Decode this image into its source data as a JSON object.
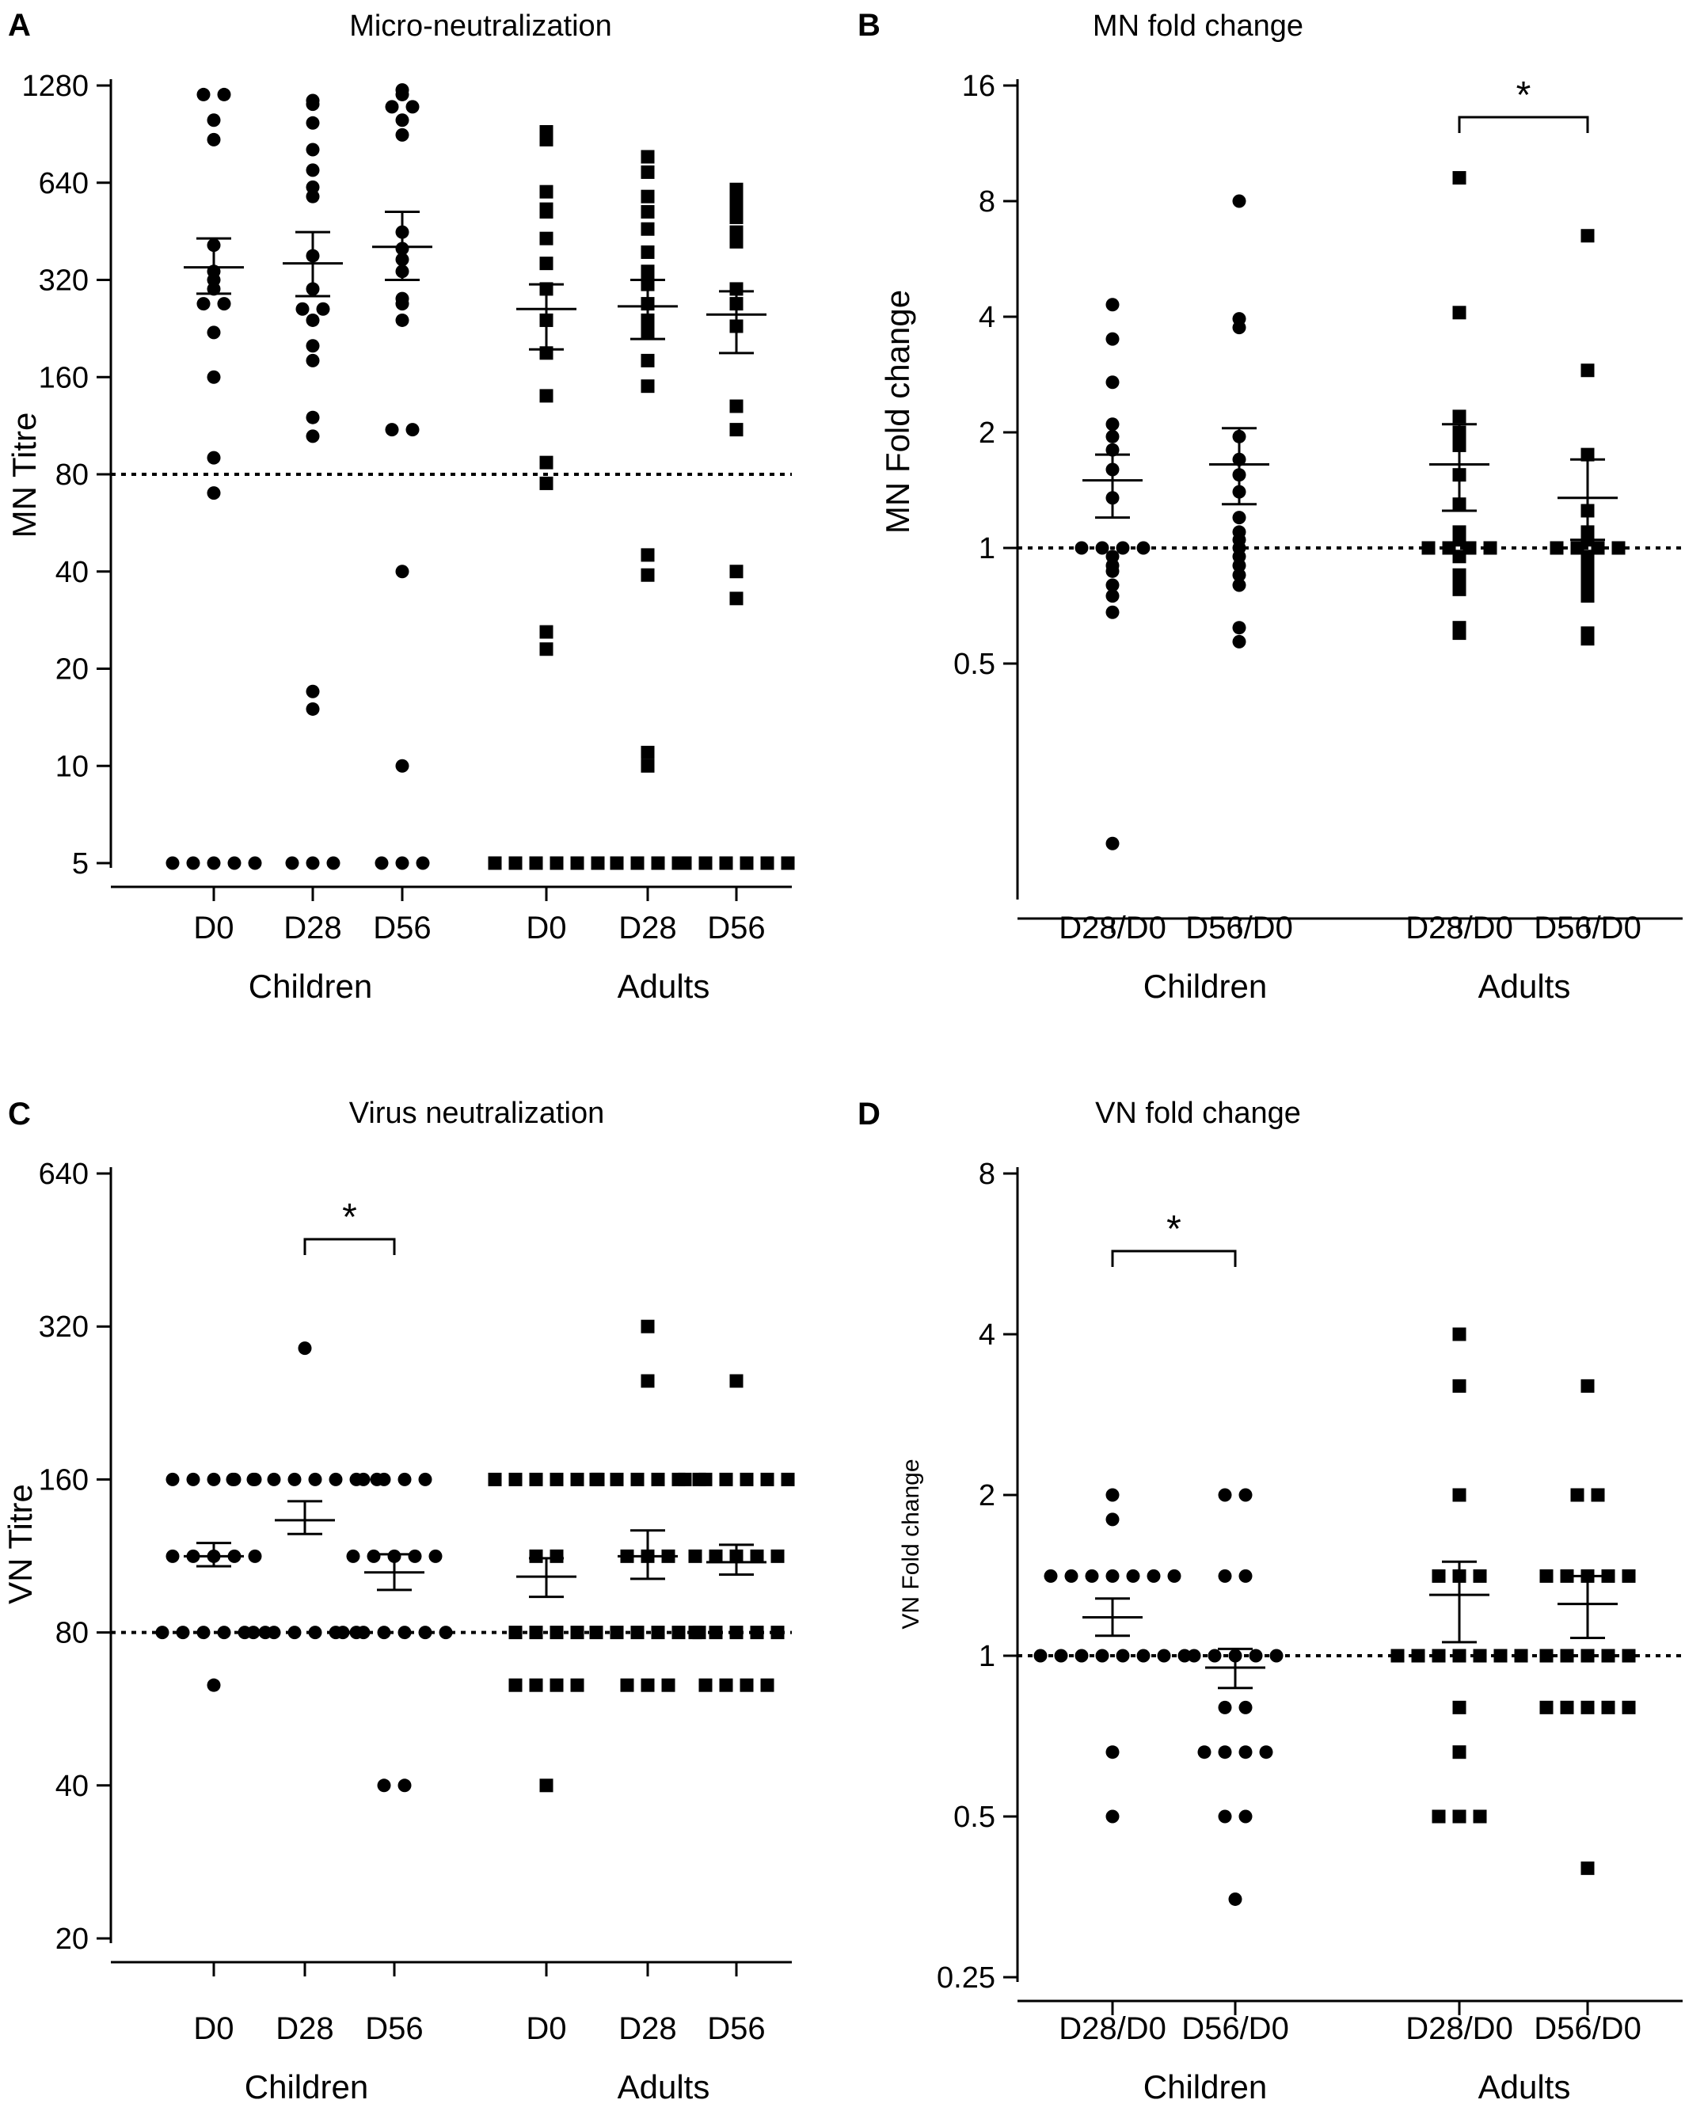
{
  "chart_data": [
    {
      "id": "A",
      "type": "scatter",
      "panel_label": "A",
      "title": "Micro-neutralization",
      "ylabel": "MN Titre",
      "yscale": "log2",
      "ylim": [
        5,
        1280
      ],
      "yticks": [
        "1280",
        "640",
        "320",
        "160",
        "80",
        "40",
        "20",
        "10",
        "5"
      ],
      "reference_line": 80,
      "groups": [
        "Children",
        "Adults"
      ],
      "categories": [
        "D0",
        "D28",
        "D56",
        "D0",
        "D28",
        "D56"
      ],
      "series": [
        {
          "category": "D0",
          "group": "Children",
          "marker": "circle",
          "mean": 350,
          "sem": [
            290,
            430
          ],
          "values": [
            1200,
            1200,
            1000,
            870,
            410,
            340,
            320,
            300,
            270,
            270,
            220,
            160,
            90,
            70,
            5,
            5,
            5,
            5,
            5
          ]
        },
        {
          "category": "D28",
          "group": "Children",
          "marker": "circle",
          "mean": 360,
          "sem": [
            285,
            450
          ],
          "values": [
            1150,
            1120,
            980,
            810,
            700,
            620,
            580,
            380,
            300,
            260,
            260,
            240,
            200,
            180,
            120,
            105,
            17,
            15,
            5,
            5,
            5
          ]
        },
        {
          "category": "D56",
          "group": "Children",
          "marker": "circle",
          "mean": 405,
          "sem": [
            320,
            520
          ],
          "values": [
            1240,
            1200,
            1100,
            1100,
            1000,
            900,
            450,
            400,
            370,
            340,
            280,
            270,
            240,
            110,
            110,
            40,
            10,
            5,
            5,
            5
          ]
        },
        {
          "category": "D0",
          "group": "Adults",
          "marker": "square",
          "mean": 260,
          "sem": [
            195,
            310
          ],
          "values": [
            870,
            920,
            600,
            530,
            520,
            430,
            360,
            300,
            240,
            190,
            140,
            87,
            75,
            26,
            23,
            5,
            5,
            5,
            5,
            5,
            5
          ]
        },
        {
          "category": "D28",
          "group": "Adults",
          "marker": "square",
          "mean": 265,
          "sem": [
            210,
            320
          ],
          "values": [
            770,
            690,
            580,
            520,
            460,
            390,
            340,
            310,
            270,
            240,
            220,
            180,
            150,
            45,
            39,
            11,
            10,
            5,
            5,
            5,
            5
          ]
        },
        {
          "category": "D56",
          "group": "Adults",
          "marker": "square",
          "mean": 250,
          "sem": [
            190,
            295
          ],
          "values": [
            610,
            560,
            520,
            510,
            500,
            450,
            420,
            300,
            270,
            230,
            130,
            110,
            40,
            33,
            5,
            5,
            5,
            5,
            5,
            5
          ]
        }
      ]
    },
    {
      "id": "B",
      "type": "scatter",
      "panel_label": "B",
      "title": "MN fold change",
      "ylabel": "MN Fold change",
      "yscale": "log2",
      "ylim": [
        0.125,
        16
      ],
      "yticks": [
        "16",
        "8",
        "4",
        "2",
        "1",
        "0.5"
      ],
      "reference_line": 1,
      "groups": [
        "Children",
        "Adults"
      ],
      "categories": [
        "D28/D0",
        "D56/D0",
        "D28/D0",
        "D56/D0"
      ],
      "significance": [
        {
          "between": [
            "D28/D0",
            "D56/D0"
          ],
          "group": "Adults",
          "label": "*"
        }
      ],
      "series": [
        {
          "category": "D28/D0",
          "group": "Children",
          "marker": "circle",
          "mean": 1.5,
          "sem": [
            1.2,
            1.75
          ],
          "values": [
            4.3,
            3.5,
            2.7,
            2.1,
            1.95,
            1.8,
            1.6,
            1.35,
            1.0,
            1.0,
            1.0,
            1.0,
            0.95,
            0.9,
            0.87,
            0.8,
            0.75,
            0.68,
            0.17
          ]
        },
        {
          "category": "D56/D0",
          "group": "Children",
          "marker": "circle",
          "mean": 1.65,
          "sem": [
            1.3,
            2.05
          ],
          "values": [
            8.0,
            3.95,
            3.75,
            1.95,
            1.7,
            1.55,
            1.4,
            1.2,
            1.1,
            1.05,
            1.0,
            0.95,
            0.9,
            0.85,
            0.8,
            0.62,
            0.57
          ]
        },
        {
          "category": "D28/D0",
          "group": "Adults",
          "marker": "square",
          "mean": 1.65,
          "sem": [
            1.25,
            2.1
          ],
          "values": [
            9.2,
            4.1,
            2.2,
            2.0,
            1.85,
            1.55,
            1.3,
            1.1,
            1.05,
            1.0,
            1.0,
            1.0,
            1.0,
            0.95,
            0.85,
            0.8,
            0.78,
            0.62,
            0.6
          ]
        },
        {
          "category": "D56/D0",
          "group": "Adults",
          "marker": "square",
          "mean": 1.35,
          "sem": [
            1.05,
            1.7
          ],
          "values": [
            6.5,
            2.9,
            1.75,
            1.25,
            1.1,
            1.05,
            1.0,
            1.0,
            1.0,
            1.0,
            0.95,
            0.9,
            0.85,
            0.8,
            0.75,
            0.6,
            0.58
          ]
        }
      ]
    },
    {
      "id": "C",
      "type": "scatter",
      "panel_label": "C",
      "title": "Virus neutralization",
      "ylabel": "VN Titre",
      "yscale": "log2",
      "ylim": [
        20,
        640
      ],
      "yticks": [
        "640",
        "320",
        "160",
        "80",
        "40",
        "20"
      ],
      "reference_line": 80,
      "groups": [
        "Children",
        "Adults"
      ],
      "categories": [
        "D0",
        "D28",
        "D56",
        "D0",
        "D28",
        "D56"
      ],
      "significance": [
        {
          "between": [
            "D28",
            "D56"
          ],
          "group": "Children",
          "label": "*"
        }
      ],
      "series": [
        {
          "category": "D0",
          "group": "Children",
          "marker": "circle",
          "mean": 113,
          "sem": [
            108,
            120
          ],
          "values": [
            160,
            160,
            160,
            160,
            160,
            113,
            113,
            113,
            113,
            113,
            80,
            80,
            80,
            80,
            80,
            80,
            63
          ]
        },
        {
          "category": "D28",
          "group": "Children",
          "marker": "circle",
          "mean": 133,
          "sem": [
            125,
            145
          ],
          "values": [
            290,
            160,
            160,
            160,
            160,
            160,
            160,
            160,
            160,
            80,
            80,
            80,
            80,
            80,
            80
          ]
        },
        {
          "category": "D56",
          "group": "Children",
          "marker": "circle",
          "mean": 105,
          "sem": [
            97,
            114
          ],
          "values": [
            160,
            160,
            160,
            160,
            113,
            113,
            113,
            113,
            113,
            80,
            80,
            80,
            80,
            80,
            80,
            40,
            40
          ]
        },
        {
          "category": "D0",
          "group": "Adults",
          "marker": "square",
          "mean": 103,
          "sem": [
            94,
            112
          ],
          "values": [
            160,
            160,
            160,
            160,
            160,
            160,
            113,
            113,
            80,
            80,
            80,
            80,
            63,
            63,
            63,
            63,
            40
          ]
        },
        {
          "category": "D28",
          "group": "Adults",
          "marker": "square",
          "mean": 113,
          "sem": [
            102,
            127
          ],
          "values": [
            320,
            250,
            160,
            160,
            160,
            160,
            160,
            160,
            113,
            113,
            113,
            80,
            80,
            80,
            80,
            80,
            80,
            63,
            63,
            63
          ]
        },
        {
          "category": "D56",
          "group": "Adults",
          "marker": "square",
          "mean": 110,
          "sem": [
            104,
            119
          ],
          "values": [
            250,
            160,
            160,
            160,
            160,
            160,
            160,
            113,
            113,
            113,
            113,
            113,
            80,
            80,
            80,
            80,
            80,
            63,
            63,
            63,
            63
          ]
        }
      ]
    },
    {
      "id": "D",
      "type": "scatter",
      "panel_label": "D",
      "title": "VN fold change",
      "ylabel": "VN Fold change",
      "yscale": "log2",
      "ylim": [
        0.25,
        8
      ],
      "yticks": [
        "8",
        "4",
        "2",
        "1",
        "0.5",
        "0.25"
      ],
      "reference_line": 1,
      "groups": [
        "Children",
        "Adults"
      ],
      "categories": [
        "D28/D0",
        "D56/D0",
        "D28/D0",
        "D56/D0"
      ],
      "significance": [
        {
          "between": [
            "D28/D0",
            "D56/D0"
          ],
          "group": "Children",
          "label": "*"
        }
      ],
      "series": [
        {
          "category": "D28/D0",
          "group": "Children",
          "marker": "circle",
          "mean": 1.18,
          "sem": [
            1.09,
            1.28
          ],
          "values": [
            2.0,
            1.8,
            1.41,
            1.41,
            1.41,
            1.41,
            1.41,
            1.41,
            1.41,
            1.0,
            1.0,
            1.0,
            1.0,
            1.0,
            1.0,
            1.0,
            1.0,
            0.66,
            0.5
          ]
        },
        {
          "category": "D56/D0",
          "group": "Children",
          "marker": "circle",
          "mean": 0.95,
          "sem": [
            0.87,
            1.03
          ],
          "values": [
            2.0,
            2.0,
            1.41,
            1.41,
            1.0,
            1.0,
            1.0,
            1.0,
            1.0,
            0.8,
            0.8,
            0.66,
            0.66,
            0.66,
            0.66,
            0.5,
            0.5,
            0.35
          ]
        },
        {
          "category": "D28/D0",
          "group": "Adults",
          "marker": "square",
          "mean": 1.3,
          "sem": [
            1.06,
            1.5
          ],
          "values": [
            4.0,
            3.2,
            2.0,
            1.41,
            1.41,
            1.41,
            1.0,
            1.0,
            1.0,
            1.0,
            1.0,
            1.0,
            1.0,
            0.8,
            0.66,
            0.5,
            0.5,
            0.5
          ]
        },
        {
          "category": "D56/D0",
          "group": "Adults",
          "marker": "square",
          "mean": 1.25,
          "sem": [
            1.08,
            1.41
          ],
          "values": [
            3.2,
            2.0,
            2.0,
            1.41,
            1.41,
            1.41,
            1.41,
            1.41,
            1.0,
            1.0,
            1.0,
            1.0,
            1.0,
            0.8,
            0.8,
            0.8,
            0.8,
            0.8,
            0.4
          ]
        }
      ]
    }
  ]
}
